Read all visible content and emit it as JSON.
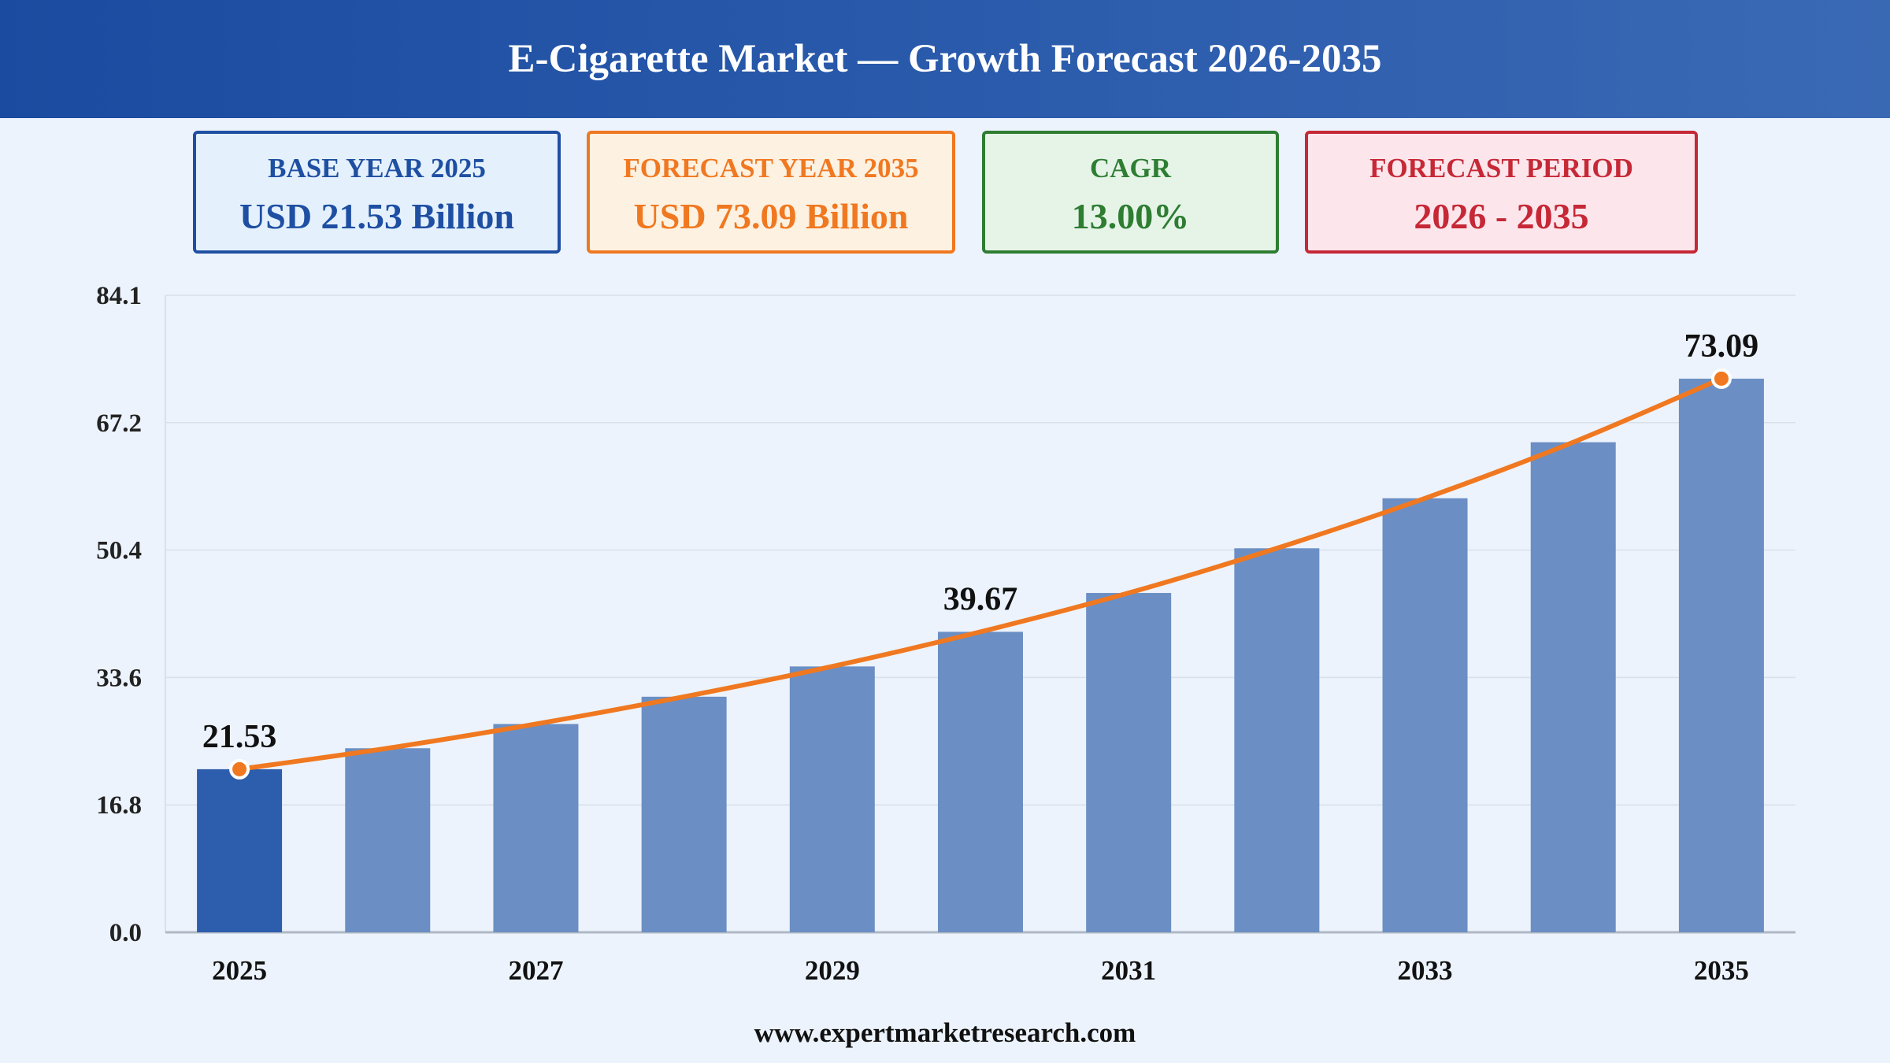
{
  "title": "E-Cigarette Market — Growth Forecast 2026-2035",
  "cards": [
    {
      "label": "BASE YEAR 2025",
      "value": "USD 21.53 Billion"
    },
    {
      "label": "FORECAST YEAR 2035",
      "value": "USD 73.09 Billion"
    },
    {
      "label": "CAGR",
      "value": "13.00%"
    },
    {
      "label": "FORECAST PERIOD",
      "value": "2026 - 2035"
    }
  ],
  "footer": "www.expertmarketresearch.com",
  "colors": {
    "bar": "#6b8fc4",
    "bar_highlight": "#2d5dad",
    "line": "#f07820",
    "grid": "#d8e0ea",
    "axis": "#b0b8c4"
  },
  "chart_data": {
    "type": "bar",
    "categories": [
      "2025",
      "2026",
      "2027",
      "2028",
      "2029",
      "2030",
      "2031",
      "2032",
      "2033",
      "2034",
      "2035"
    ],
    "values": [
      21.53,
      24.3,
      27.5,
      31.1,
      35.1,
      39.67,
      44.8,
      50.7,
      57.3,
      64.7,
      73.09
    ],
    "x_tick_labels": [
      "2025",
      "",
      "2027",
      "",
      "2029",
      "",
      "2031",
      "",
      "2033",
      "",
      "2035"
    ],
    "y_ticks": [
      "0.0",
      "16.8",
      "33.6",
      "50.4",
      "67.2",
      "84.1"
    ],
    "ylim": [
      0,
      84.1
    ],
    "data_labels": [
      {
        "index": 0,
        "text": "21.53"
      },
      {
        "index": 5,
        "text": "39.67"
      },
      {
        "index": 10,
        "text": "73.09"
      }
    ],
    "line_overlay": true,
    "grid": true
  }
}
